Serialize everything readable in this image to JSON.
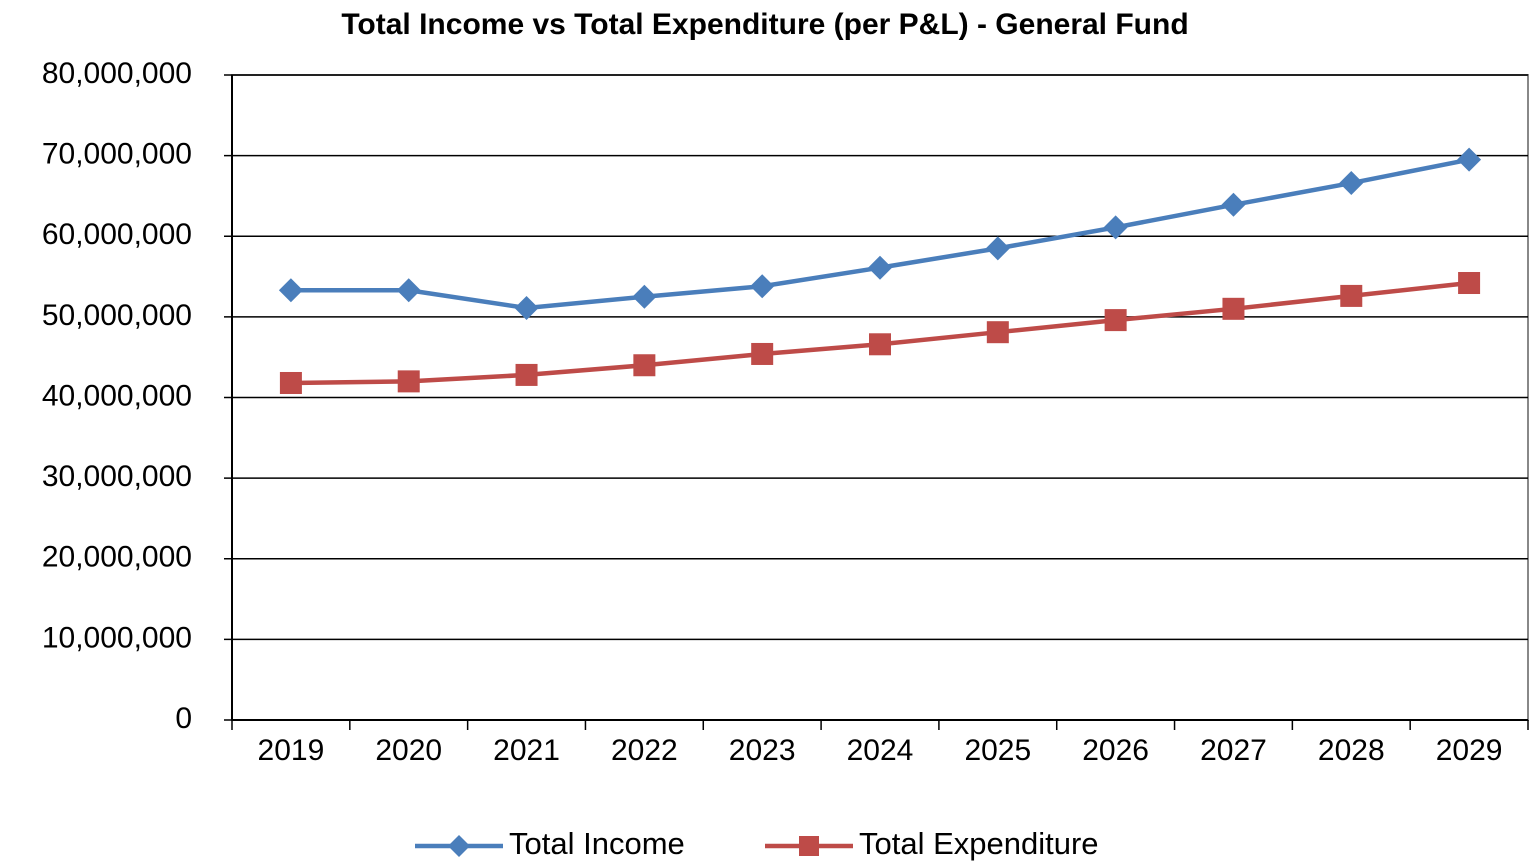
{
  "chart_data": {
    "type": "line",
    "title": "Total Income vs Total Expenditure (per P&L) - General Fund",
    "categories": [
      "2019",
      "2020",
      "2021",
      "2022",
      "2023",
      "2024",
      "2025",
      "2026",
      "2027",
      "2028",
      "2029"
    ],
    "series": [
      {
        "name": "Total Income",
        "color": "#4a7ebb",
        "marker": "diamond",
        "values": [
          53300000,
          53300000,
          51100000,
          52500000,
          53800000,
          56100000,
          58500000,
          61100000,
          63900000,
          66600000,
          69500000
        ]
      },
      {
        "name": "Total Expenditure",
        "color": "#be4b48",
        "marker": "square",
        "values": [
          41800000,
          42000000,
          42800000,
          44000000,
          45400000,
          46600000,
          48100000,
          49600000,
          51000000,
          52600000,
          54200000
        ]
      }
    ],
    "ylim": [
      0,
      80000000
    ],
    "yticks": [
      0,
      {
        "value": 10000000,
        "label": "10,000,000"
      },
      {
        "value": 20000000,
        "label": "20,000,000"
      },
      {
        "value": 30000000,
        "label": "30,000,000"
      },
      {
        "value": 40000000,
        "label": "40,000,000"
      },
      {
        "value": 50000000,
        "label": "50,000,000"
      },
      {
        "value": 60000000,
        "label": "60,000,000"
      },
      {
        "value": 70000000,
        "label": "70,000,000"
      },
      {
        "value": 80000000,
        "label": "80,000,000"
      }
    ],
    "grid": true,
    "legend": "bottom"
  }
}
